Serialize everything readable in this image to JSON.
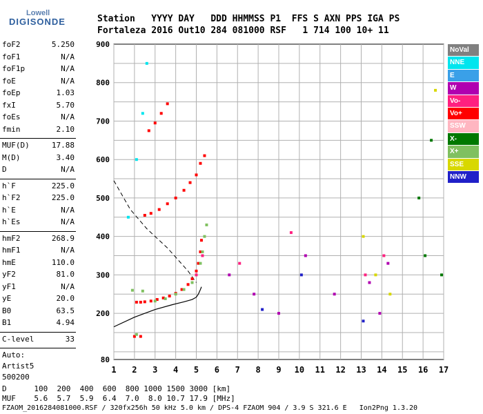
{
  "logo": {
    "top": "Lowell",
    "main": "DIGISONDE"
  },
  "header": {
    "labels": "Station   YYYY DAY   DDD HHMMSS P1  FFS S AXN PPS IGA PS",
    "values": "Fortaleza 2016 Out10 284 081000 RSF   1 714 100 10+ 11"
  },
  "params": [
    {
      "key": "foF2",
      "val": "5.250"
    },
    {
      "key": "foF1",
      "val": "N/A"
    },
    {
      "key": "foF1p",
      "val": "N/A"
    },
    {
      "key": "foE",
      "val": "N/A"
    },
    {
      "key": "foEp",
      "val": "1.03"
    },
    {
      "key": "fxI",
      "val": "5.70"
    },
    {
      "key": "foEs",
      "val": "N/A"
    },
    {
      "key": "fmin",
      "val": "2.10"
    },
    {
      "key": "MUF(D)",
      "val": "17.88"
    },
    {
      "key": "M(D)",
      "val": "3.40"
    },
    {
      "key": "D",
      "val": "N/A"
    },
    {
      "key": "h`F",
      "val": "225.0"
    },
    {
      "key": "h`F2",
      "val": "225.0"
    },
    {
      "key": "h`E",
      "val": "N/A"
    },
    {
      "key": "h`Es",
      "val": "N/A"
    },
    {
      "key": "hmF2",
      "val": "268.9"
    },
    {
      "key": "hmF1",
      "val": "N/A"
    },
    {
      "key": "hmE",
      "val": "110.0"
    },
    {
      "key": "yF2",
      "val": "81.0"
    },
    {
      "key": "yF1",
      "val": "N/A"
    },
    {
      "key": "yE",
      "val": "20.0"
    },
    {
      "key": "B0",
      "val": "63.5"
    },
    {
      "key": "B1",
      "val": "4.94"
    },
    {
      "key": "C-level",
      "val": "33"
    }
  ],
  "auto": {
    "line1": "Auto:",
    "line2": "Artist5",
    "line3": "500200"
  },
  "legend": [
    {
      "label": "NoVal",
      "color": "#808080"
    },
    {
      "label": "NNE",
      "color": "#00e5ee"
    },
    {
      "label": "E",
      "color": "#3aa0e8"
    },
    {
      "label": "W",
      "color": "#b000b0"
    },
    {
      "label": "Vo-",
      "color": "#ff2080"
    },
    {
      "label": "Vo+",
      "color": "#ff0000"
    },
    {
      "label": "SSW",
      "color": "#ffb6c1"
    },
    {
      "label": "X-",
      "color": "#007800"
    },
    {
      "label": "X+",
      "color": "#80c060"
    },
    {
      "label": "SSE",
      "color": "#d8d800"
    },
    {
      "label": "NNW",
      "color": "#2020c8"
    }
  ],
  "footer": {
    "distance_line": "D      100  200  400  600  800 1000 1500 3000 [km]",
    "muf_line": "MUF    5.6  5.7  5.9  6.4  7.0  8.0 10.7 17.9 [MHz]",
    "file_line": "FZAOM_2016284081000.RSF / 320fx256h 50 kHz 5.0 km / DPS-4 FZAOM 904 / 3.9 S 321.6 E   Ion2Png 1.3.20"
  },
  "chart_data": {
    "type": "scatter",
    "xlim": [
      1,
      17
    ],
    "ylim": [
      80,
      900
    ],
    "x_ticks": [
      1,
      2,
      3,
      4,
      5,
      6,
      7,
      8,
      9,
      10,
      11,
      12,
      13,
      14,
      15,
      16,
      17
    ],
    "y_ticks": [
      80,
      200,
      300,
      400,
      500,
      600,
      700,
      800,
      900
    ],
    "grid": true,
    "legend_placement": "right",
    "series": [
      {
        "name": "Vo+",
        "color": "#ff0000",
        "x": [
          2.1,
          2.3,
          2.5,
          2.8,
          3.1,
          3.4,
          3.7,
          4.0,
          4.3,
          4.6,
          4.8,
          5.0,
          5.1,
          5.2,
          5.25,
          2.5,
          2.8,
          3.2,
          3.6,
          4.0,
          4.4,
          4.7,
          5.0,
          5.2,
          5.4,
          2.7,
          3.0,
          3.3,
          3.6,
          2.0,
          2.3
        ],
        "y": [
          229,
          229,
          230,
          232,
          236,
          240,
          245,
          252,
          262,
          275,
          290,
          310,
          330,
          360,
          390,
          455,
          460,
          470,
          485,
          500,
          520,
          540,
          560,
          590,
          610,
          675,
          695,
          720,
          745,
          140,
          140
        ]
      },
      {
        "name": "X+",
        "color": "#80c060",
        "x": [
          3.0,
          3.5,
          4.0,
          4.4,
          4.8,
          5.0,
          5.2,
          5.3,
          5.4,
          5.5,
          2.4,
          1.9,
          2.1
        ],
        "y": [
          232,
          238,
          250,
          262,
          280,
          300,
          330,
          360,
          400,
          430,
          258,
          260,
          145
        ]
      },
      {
        "name": "Vo-",
        "color": "#ff2080",
        "x": [
          5.0,
          5.3,
          7.1,
          9.6,
          13.2,
          14.1
        ],
        "y": [
          300,
          350,
          330,
          410,
          300,
          350
        ]
      },
      {
        "name": "W",
        "color": "#b000b0",
        "x": [
          6.6,
          7.8,
          9.0,
          10.3,
          11.7,
          13.4,
          13.9,
          14.3
        ],
        "y": [
          300,
          250,
          200,
          350,
          250,
          280,
          200,
          330
        ]
      },
      {
        "name": "NNE",
        "color": "#00e5ee",
        "x": [
          1.7,
          2.1,
          2.4,
          2.6
        ],
        "y": [
          450,
          600,
          720,
          850
        ]
      },
      {
        "name": "SSE",
        "color": "#d8d800",
        "x": [
          13.1,
          13.7,
          14.4,
          16.6
        ],
        "y": [
          400,
          300,
          250,
          780
        ]
      },
      {
        "name": "X-",
        "color": "#007800",
        "x": [
          15.8,
          16.1,
          16.4,
          16.9
        ],
        "y": [
          500,
          350,
          650,
          300
        ]
      },
      {
        "name": "NNW",
        "color": "#2020c8",
        "x": [
          8.2,
          10.1,
          13.1
        ],
        "y": [
          210,
          300,
          180
        ]
      }
    ],
    "profile_line": {
      "x": [
        1.0,
        2.0,
        3.0,
        3.8,
        4.4,
        4.8,
        5.0,
        5.1,
        5.2,
        5.25
      ],
      "y": [
        165,
        190,
        210,
        222,
        230,
        236,
        242,
        250,
        262,
        269
      ]
    },
    "dashed_line": {
      "x": [
        1.0,
        1.8,
        2.6,
        3.6,
        4.6,
        5.0
      ],
      "y": [
        545,
        470,
        420,
        370,
        310,
        280
      ]
    }
  }
}
